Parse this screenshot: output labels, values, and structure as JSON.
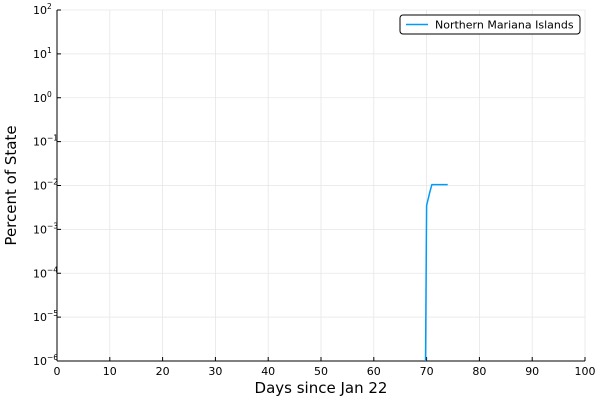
{
  "chart_data": {
    "type": "line",
    "xlabel": "Days since Jan 22",
    "ylabel": "Percent of State",
    "xlim": [
      0,
      100
    ],
    "ylim": [
      1e-06,
      100
    ],
    "yscale": "log",
    "grid": true,
    "legend_position": "top-right",
    "x_ticks": [
      0,
      10,
      20,
      30,
      40,
      50,
      60,
      70,
      80,
      90,
      100
    ],
    "y_ticks": [
      {
        "base": "10",
        "exp": "−6",
        "value": 1e-06
      },
      {
        "base": "10",
        "exp": "−5",
        "value": 1e-05
      },
      {
        "base": "10",
        "exp": "−4",
        "value": 0.0001
      },
      {
        "base": "10",
        "exp": "−3",
        "value": 0.001
      },
      {
        "base": "10",
        "exp": "−2",
        "value": 0.01
      },
      {
        "base": "10",
        "exp": "−1",
        "value": 0.1
      },
      {
        "base": "10",
        "exp": "0",
        "value": 1
      },
      {
        "base": "10",
        "exp": "1",
        "value": 10
      },
      {
        "base": "10",
        "exp": "2",
        "value": 100
      }
    ],
    "series": [
      {
        "name": "Northern Mariana Islands",
        "color": "#009AFA",
        "x": [
          69.8,
          70,
          70.6,
          71,
          72,
          73,
          74
        ],
        "y": [
          1e-06,
          0.0035,
          0.007,
          0.0105,
          0.0105,
          0.0105,
          0.0105
        ]
      }
    ]
  }
}
